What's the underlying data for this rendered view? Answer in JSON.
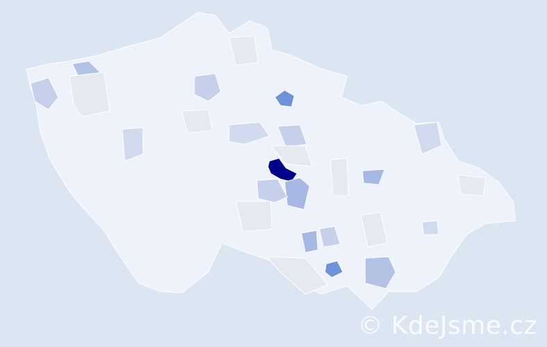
{
  "map": {
    "colors": {
      "background": "#dce5f2",
      "land": "#eef2fa",
      "border": "#ffffff",
      "lowest": "#e6e9f0",
      "light": "#c6d0ea",
      "medium": "#a6b8e3",
      "high": "#6f93d8",
      "highest": "#00008b"
    }
  },
  "watermark": {
    "text": "© KdeJsme.cz"
  }
}
